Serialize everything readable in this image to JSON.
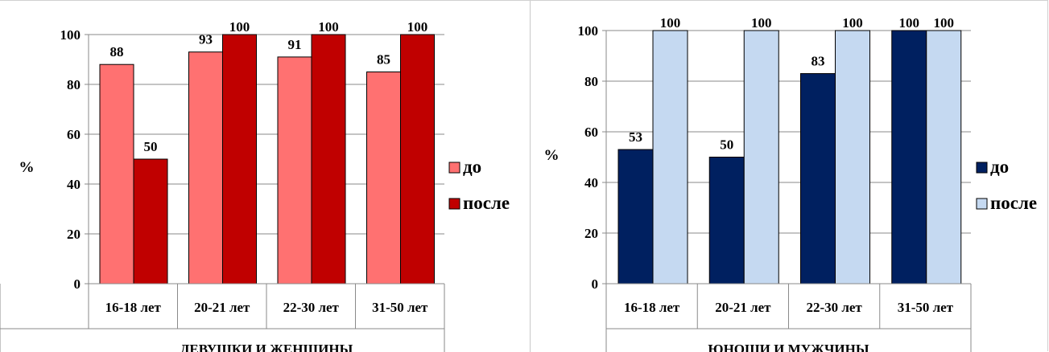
{
  "chart_data": [
    {
      "type": "bar",
      "title": "",
      "xlabel": "ДЕВУШКИ И ЖЕНЩИНЫ",
      "ylabel": "%",
      "ylim": [
        0,
        100
      ],
      "yticks": [
        0,
        20,
        40,
        60,
        80,
        100
      ],
      "categories": [
        "16-18 лет",
        "20-21 лет",
        "22-30 лет",
        "31-50 лет"
      ],
      "series": [
        {
          "name": "до",
          "values": [
            88,
            93,
            91,
            85
          ],
          "color": "#ff7171"
        },
        {
          "name": "после",
          "values": [
            50,
            100,
            100,
            100
          ],
          "color": "#c00000"
        }
      ],
      "data_labels": [
        [
          "88",
          "93",
          "91",
          "85"
        ],
        [
          "50",
          "100",
          "100",
          "100"
        ]
      ],
      "grid": true,
      "legend": "right"
    },
    {
      "type": "bar",
      "title": "",
      "xlabel": "ЮНОШИ И МУЖЧИНЫ",
      "ylabel": "%",
      "ylim": [
        0,
        100
      ],
      "yticks": [
        0,
        20,
        40,
        60,
        80,
        100
      ],
      "categories": [
        "16-18 лет",
        "20-21 лет",
        "22-30 лет",
        "31-50 лет"
      ],
      "series": [
        {
          "name": "до",
          "values": [
            53,
            50,
            83,
            100
          ],
          "color": "#002060"
        },
        {
          "name": "после",
          "values": [
            100,
            100,
            100,
            100
          ],
          "color": "#c5d9f1"
        }
      ],
      "data_labels": [
        [
          "53",
          "50",
          "83",
          "100"
        ],
        [
          "100",
          "100",
          "100",
          "100"
        ]
      ],
      "grid": true,
      "legend": "right"
    }
  ]
}
